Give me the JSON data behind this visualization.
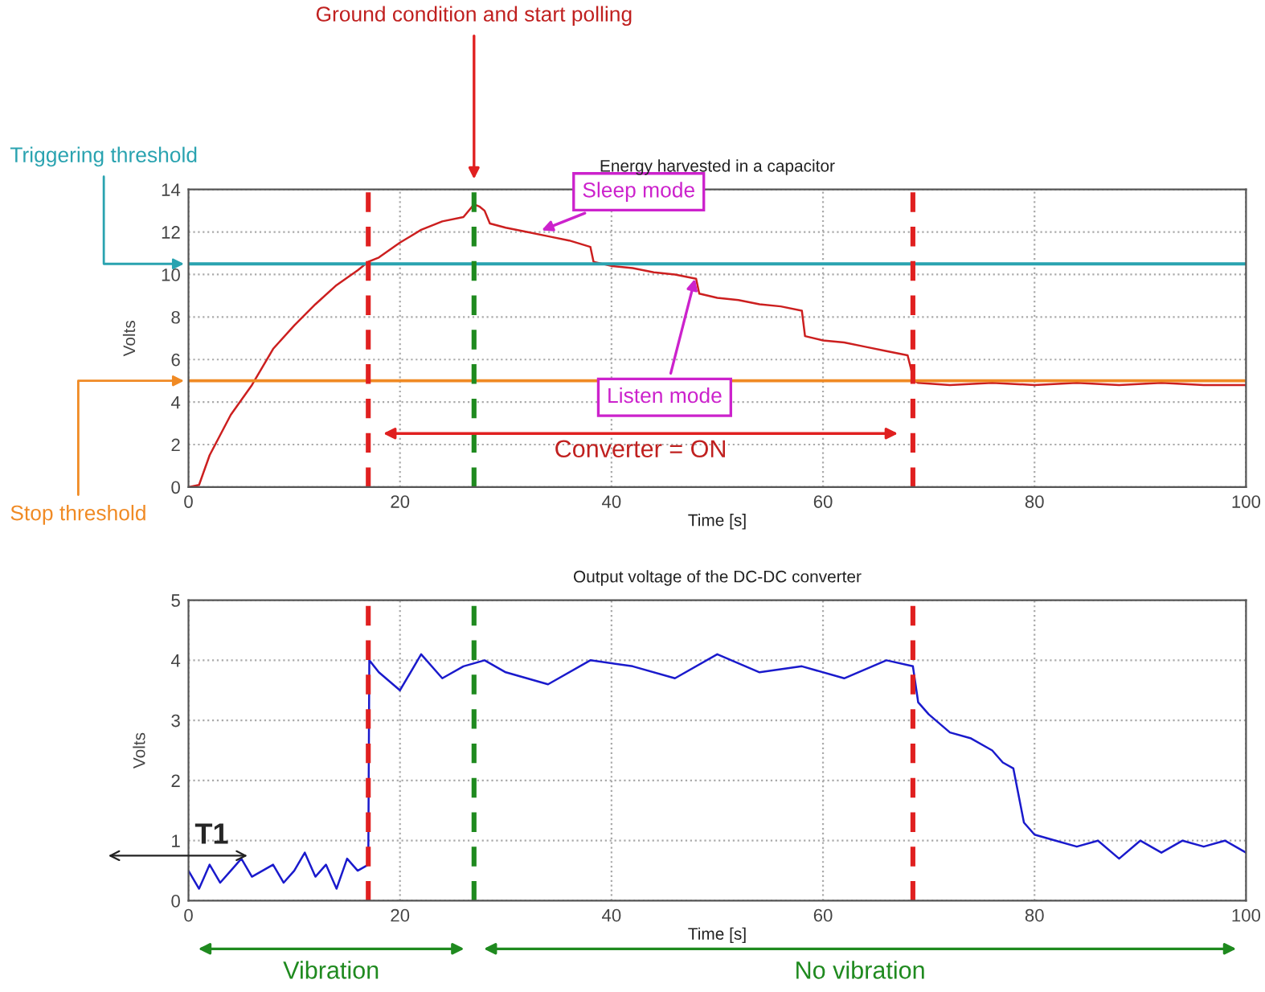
{
  "chart_data": [
    {
      "type": "line",
      "title": "Energy harvested in a capacitor",
      "xlabel": "Time [s]",
      "ylabel": "Volts",
      "xlim": [
        0,
        100
      ],
      "xticks": [
        0,
        20,
        40,
        60,
        80,
        100
      ],
      "ylim": [
        0,
        14
      ],
      "yticks": [
        0,
        2,
        4,
        6,
        8,
        10,
        12,
        14
      ],
      "grid": true,
      "legend": false,
      "series": [
        {
          "color": "#cc1f1f",
          "x": [
            0,
            1,
            2,
            4,
            6,
            8,
            10,
            12,
            14,
            16,
            17,
            18,
            20,
            22,
            24,
            26,
            27,
            27.5,
            28,
            28.5,
            30,
            32,
            34,
            36,
            38,
            38.3,
            40,
            42,
            44,
            46,
            48,
            48.3,
            50,
            52,
            54,
            56,
            58,
            58.3,
            60,
            62,
            64,
            66,
            68,
            68.6,
            69,
            72,
            76,
            80,
            84,
            88,
            92,
            96,
            100
          ],
          "values": [
            0,
            0.1,
            1.5,
            3.4,
            4.8,
            6.5,
            7.6,
            8.6,
            9.5,
            10.2,
            10.6,
            10.8,
            11.5,
            12.1,
            12.5,
            12.7,
            13.3,
            13.2,
            13.0,
            12.4,
            12.2,
            12.0,
            11.8,
            11.6,
            11.3,
            10.6,
            10.4,
            10.3,
            10.1,
            10.0,
            9.8,
            9.1,
            8.9,
            8.8,
            8.6,
            8.5,
            8.3,
            7.1,
            6.9,
            6.8,
            6.6,
            6.4,
            6.2,
            5.0,
            4.9,
            4.8,
            4.9,
            4.8,
            4.9,
            4.8,
            4.9,
            4.8,
            4.8
          ]
        }
      ],
      "ref_lines": [
        {
          "axis": "y",
          "value": 10.5,
          "label": "Triggering threshold",
          "color": "#2aa3b0",
          "line_style": "solid"
        },
        {
          "axis": "y",
          "value": 5,
          "label": "Stop threshold",
          "color": "#f08a24",
          "line_style": "solid"
        },
        {
          "axis": "x",
          "value": 17,
          "color": "#e02020",
          "line_style": "dashed"
        },
        {
          "axis": "x",
          "value": 27,
          "label": "Ground condition and start polling",
          "color": "#1f8a1f",
          "line_style": "dashed"
        },
        {
          "axis": "x",
          "value": 68.5,
          "color": "#e02020",
          "line_style": "dashed"
        }
      ],
      "annotations": [
        {
          "text": "Sleep mode",
          "x": 33,
          "y": 12
        },
        {
          "text": "Listen mode",
          "x": 48,
          "y": 10
        },
        "Converter = ON"
      ]
    },
    {
      "type": "line",
      "title": "Output voltage of the DC-DC converter",
      "xlabel": "Time [s]",
      "ylabel": "Volts",
      "xlim": [
        0,
        100
      ],
      "xticks": [
        0,
        20,
        40,
        60,
        80,
        100
      ],
      "ylim": [
        0,
        5
      ],
      "yticks": [
        0,
        1,
        2,
        3,
        4,
        5
      ],
      "grid": true,
      "legend": false,
      "series": [
        {
          "color": "#1a1acc",
          "x": [
            0,
            1,
            2,
            3,
            4,
            5,
            6,
            7,
            8,
            9,
            10,
            11,
            12,
            13,
            14,
            15,
            16,
            17,
            17.1,
            18,
            20,
            22,
            24,
            26,
            28,
            30,
            34,
            38,
            42,
            46,
            50,
            54,
            58,
            62,
            66,
            68.5,
            69,
            70,
            72,
            74,
            76,
            77,
            78,
            79,
            80,
            82,
            84,
            86,
            88,
            90,
            92,
            94,
            96,
            98,
            100
          ],
          "values": [
            0.5,
            0.2,
            0.6,
            0.3,
            0.5,
            0.7,
            0.4,
            0.5,
            0.6,
            0.3,
            0.5,
            0.8,
            0.4,
            0.6,
            0.2,
            0.7,
            0.5,
            0.6,
            4.0,
            3.8,
            3.5,
            4.1,
            3.7,
            3.9,
            4.0,
            3.8,
            3.6,
            4.0,
            3.9,
            3.7,
            4.1,
            3.8,
            3.9,
            3.7,
            4.0,
            3.9,
            3.3,
            3.1,
            2.8,
            2.7,
            2.5,
            2.3,
            2.2,
            1.3,
            1.1,
            1.0,
            0.9,
            1.0,
            0.7,
            1.0,
            0.8,
            1.0,
            0.9,
            1.0,
            0.8
          ]
        }
      ],
      "ref_lines": [
        {
          "axis": "x",
          "value": 17,
          "color": "#e02020",
          "line_style": "dashed"
        },
        {
          "axis": "x",
          "value": 27,
          "color": "#1f8a1f",
          "line_style": "dashed"
        },
        {
          "axis": "x",
          "value": 68.5,
          "color": "#e02020",
          "line_style": "dashed"
        }
      ],
      "annotations": [
        "Vibration",
        "No vibration",
        "T1"
      ]
    }
  ]
}
